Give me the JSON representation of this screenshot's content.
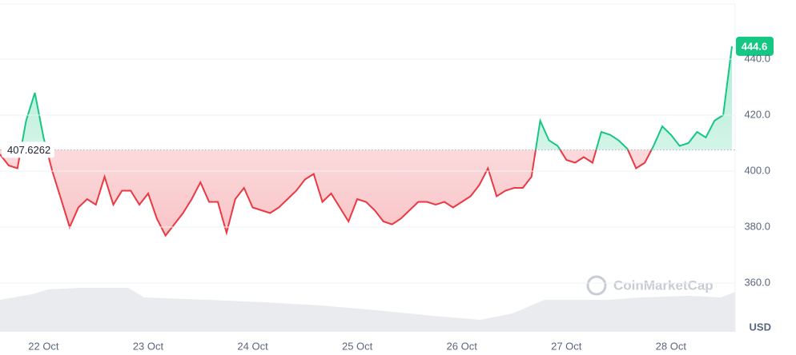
{
  "chart_data": {
    "type": "line",
    "categories": [
      null,
      null,
      null,
      null,
      null,
      "22 Oct",
      null,
      null,
      null,
      null,
      null,
      null,
      null,
      null,
      null,
      null,
      null,
      "23 Oct",
      null,
      null,
      null,
      null,
      null,
      null,
      null,
      null,
      null,
      null,
      null,
      "24 Oct",
      null,
      null,
      null,
      null,
      null,
      null,
      null,
      null,
      null,
      null,
      null,
      "25 Oct",
      null,
      null,
      null,
      null,
      null,
      null,
      null,
      null,
      null,
      null,
      null,
      "26 Oct",
      null,
      null,
      null,
      null,
      null,
      null,
      null,
      null,
      null,
      null,
      null,
      "27 Oct",
      null,
      null,
      null,
      null,
      null,
      null,
      null,
      null,
      null,
      null,
      null,
      "28 Oct",
      null,
      null,
      null,
      null,
      null,
      null,
      null
    ],
    "values": [
      406,
      402,
      401,
      418,
      428,
      412,
      400,
      390,
      380,
      387,
      390,
      388,
      398,
      388,
      393,
      393,
      388,
      392,
      383,
      377,
      381,
      385,
      390,
      396,
      389,
      389,
      378,
      390,
      394,
      387,
      386,
      385,
      387,
      390,
      393,
      397,
      399,
      389,
      392,
      387,
      382,
      390,
      389,
      386,
      382,
      381,
      383,
      386,
      389,
      389,
      388,
      389,
      387,
      389,
      391,
      395,
      401,
      391,
      393,
      394,
      394,
      398,
      418,
      411,
      409,
      404,
      403,
      405,
      403,
      414,
      413,
      411,
      408,
      401,
      403,
      409,
      416,
      413,
      409,
      410,
      414,
      412,
      418,
      420,
      444.6
    ],
    "baseline": 407.6262,
    "color_up": "#16c784",
    "color_down": "#ea3943",
    "ylim": [
      342.6,
      459.7
    ],
    "yticks": [
      {
        "value": 360,
        "label": "360.0"
      },
      {
        "value": 380,
        "label": "380.0"
      },
      {
        "value": 400,
        "label": "400.0"
      },
      {
        "value": 420,
        "label": "420.0"
      },
      {
        "value": 440,
        "label": "440.0"
      }
    ],
    "y_label": "USD",
    "watermark": "CoinMarketCap",
    "grid": true
  }
}
